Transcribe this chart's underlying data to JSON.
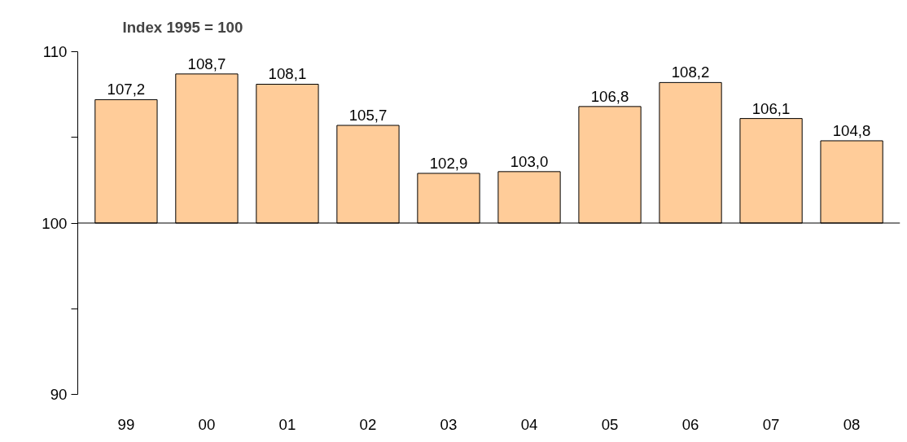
{
  "chart_data": {
    "type": "bar",
    "title": "Index 1995 = 100",
    "categories": [
      "99",
      "00",
      "01",
      "02",
      "03",
      "04",
      "05",
      "06",
      "07",
      "08"
    ],
    "base": [
      100,
      100,
      100,
      100,
      100,
      100,
      100,
      100,
      100,
      100
    ],
    "values": [
      7.2,
      8.7,
      8.1,
      5.7,
      2.9,
      3.0,
      6.8,
      8.2,
      6.1,
      4.8
    ],
    "value_labels": [
      "107,2",
      "108,7",
      "108,1",
      "105,7",
      "102,9",
      "103,0",
      "106,8",
      "108,2",
      "106,1",
      "104,8"
    ],
    "color": "#ffcc99",
    "ylim": [
      90,
      110
    ],
    "yticks": [
      90,
      {
        "value": 95,
        "label": null
      },
      100,
      {
        "value": 105,
        "label": null
      },
      110
    ],
    "ref_lines": [
      {
        "axis": "y",
        "value": 100,
        "color": "#000000"
      }
    ],
    "grid": false
  }
}
